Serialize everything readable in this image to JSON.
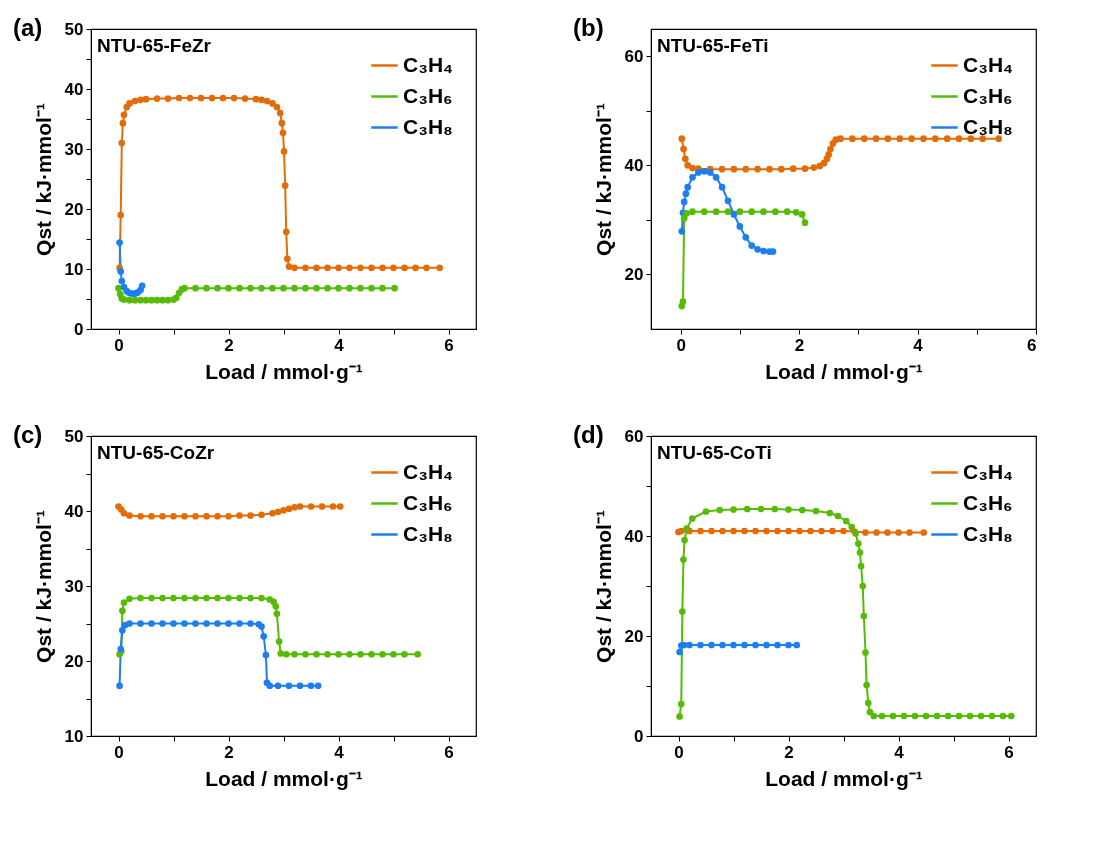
{
  "chart_data": [
    {
      "type": "line",
      "title": "NTU-65-FeZr",
      "annotations": [
        "(a)"
      ],
      "xlabel": "Load / mmol·g⁻¹",
      "ylabel": "Qst / kJ·mmol⁻¹",
      "xlim": [
        -0.5,
        6.5
      ],
      "ylim": [
        0,
        50
      ],
      "xticks": [
        0,
        {
          "value": 1,
          "label": null
        },
        2,
        {
          "value": 3,
          "label": null
        },
        4,
        {
          "value": 5,
          "label": null
        },
        6
      ],
      "yticks": [
        0,
        {
          "value": 5,
          "label": null
        },
        10,
        {
          "value": 15,
          "label": null
        },
        20,
        {
          "value": 25,
          "label": null
        },
        30,
        {
          "value": 35,
          "label": null
        },
        40,
        {
          "value": 45,
          "label": null
        },
        50
      ],
      "grid": false,
      "legend": "top right",
      "marker": "circle",
      "line_style": "solid",
      "series": [
        {
          "name": "C₃H₄",
          "color": "#e36c09",
          "x": [
            0.02,
            0.04,
            0.06,
            0.08,
            0.1,
            0.15,
            0.2,
            0.3,
            0.4,
            0.5,
            0.7,
            0.9,
            1.1,
            1.3,
            1.5,
            1.7,
            1.9,
            2.1,
            2.3,
            2.5,
            2.6,
            2.7,
            2.8,
            2.88,
            2.94,
            2.97,
            2.99,
            3.01,
            3.03,
            3.05,
            3.07,
            3.1,
            3.2,
            3.4,
            3.6,
            3.8,
            4.0,
            4.2,
            4.4,
            4.6,
            4.8,
            5.0,
            5.2,
            5.4,
            5.6,
            5.84
          ],
          "values": [
            10.2,
            19.0,
            31.0,
            34.3,
            35.7,
            37.0,
            37.6,
            38.0,
            38.2,
            38.3,
            38.4,
            38.4,
            38.5,
            38.5,
            38.5,
            38.5,
            38.5,
            38.5,
            38.4,
            38.3,
            38.2,
            38.0,
            37.6,
            37.0,
            36.0,
            34.3,
            32.7,
            29.6,
            23.9,
            16.2,
            11.7,
            10.4,
            10.2,
            10.2,
            10.2,
            10.2,
            10.2,
            10.2,
            10.2,
            10.2,
            10.2,
            10.2,
            10.2,
            10.2,
            10.2,
            10.2
          ]
        },
        {
          "name": "C₃H₆",
          "color": "#56bb06",
          "x": [
            0.0,
            0.03,
            0.06,
            0.1,
            0.2,
            0.3,
            0.4,
            0.5,
            0.6,
            0.7,
            0.8,
            0.9,
            1.0,
            1.05,
            1.1,
            1.15,
            1.2,
            1.4,
            1.6,
            1.8,
            2.0,
            2.2,
            2.4,
            2.6,
            2.8,
            3.0,
            3.2,
            3.4,
            3.6,
            3.8,
            4.0,
            4.2,
            4.4,
            4.6,
            4.8,
            5.02
          ],
          "values": [
            6.8,
            5.8,
            5.1,
            4.9,
            4.8,
            4.8,
            4.8,
            4.8,
            4.8,
            4.8,
            4.8,
            4.8,
            4.9,
            5.2,
            6.0,
            6.6,
            6.8,
            6.8,
            6.8,
            6.8,
            6.8,
            6.8,
            6.8,
            6.8,
            6.8,
            6.8,
            6.8,
            6.8,
            6.8,
            6.8,
            6.8,
            6.8,
            6.8,
            6.8,
            6.8,
            6.8
          ]
        },
        {
          "name": "C₃H₈",
          "color": "#1c7ef0",
          "x": [
            0.02,
            0.04,
            0.06,
            0.1,
            0.15,
            0.2,
            0.25,
            0.3,
            0.35,
            0.4,
            0.43
          ],
          "values": [
            14.4,
            9.6,
            8.0,
            7.0,
            6.3,
            6.0,
            5.9,
            5.9,
            6.1,
            6.5,
            7.2
          ]
        }
      ]
    },
    {
      "type": "line",
      "title": "NTU-65-FeTi",
      "annotations": [
        "(b)"
      ],
      "xlabel": "Load / mmol·g⁻¹",
      "ylabel": "Qst / kJ·mmol⁻¹",
      "xlim": [
        -0.5,
        6
      ],
      "ylim": [
        10,
        65
      ],
      "xticks": [
        0,
        {
          "value": 1,
          "label": null
        },
        2,
        {
          "value": 3,
          "label": null
        },
        4,
        {
          "value": 5,
          "label": null
        },
        6
      ],
      "yticks": [
        20,
        {
          "value": 30,
          "label": null
        },
        40,
        {
          "value": 50,
          "label": null
        },
        60
      ],
      "grid": false,
      "legend": "top right",
      "marker": "circle",
      "line_style": "solid",
      "series": [
        {
          "name": "C₃H₄",
          "color": "#e36c09",
          "x": [
            0.02,
            0.05,
            0.08,
            0.12,
            0.2,
            0.3,
            0.5,
            0.7,
            0.9,
            1.1,
            1.3,
            1.5,
            1.7,
            1.9,
            2.1,
            2.25,
            2.35,
            2.42,
            2.47,
            2.5,
            2.53,
            2.57,
            2.62,
            2.7,
            2.9,
            3.1,
            3.3,
            3.5,
            3.7,
            3.9,
            4.1,
            4.3,
            4.5,
            4.7,
            4.9,
            5.1,
            5.37
          ],
          "values": [
            44.9,
            43.0,
            41.2,
            40.0,
            39.5,
            39.4,
            39.3,
            39.3,
            39.3,
            39.3,
            39.3,
            39.3,
            39.3,
            39.4,
            39.4,
            39.6,
            39.9,
            40.4,
            41.2,
            42.0,
            43.0,
            44.0,
            44.7,
            44.9,
            44.9,
            44.9,
            44.9,
            44.9,
            44.9,
            44.9,
            44.9,
            44.9,
            44.9,
            44.9,
            44.9,
            44.9,
            44.9
          ]
        },
        {
          "name": "C₃H₆",
          "color": "#56bb06",
          "x": [
            0.02,
            0.04,
            0.06,
            0.1,
            0.2,
            0.4,
            0.6,
            0.8,
            1.0,
            1.2,
            1.4,
            1.6,
            1.8,
            1.95,
            2.05,
            2.1
          ],
          "values": [
            14.2,
            15.0,
            30.3,
            31.2,
            31.5,
            31.5,
            31.5,
            31.5,
            31.5,
            31.5,
            31.5,
            31.5,
            31.5,
            31.4,
            31.0,
            29.5
          ]
        },
        {
          "name": "C₃H₈",
          "color": "#1c7ef0",
          "x": [
            0.02,
            0.04,
            0.06,
            0.09,
            0.12,
            0.2,
            0.3,
            0.4,
            0.5,
            0.6,
            0.7,
            0.8,
            0.9,
            1.0,
            1.1,
            1.2,
            1.3,
            1.4,
            1.5,
            1.56
          ],
          "values": [
            27.9,
            31.3,
            33.3,
            34.8,
            36.0,
            37.8,
            38.7,
            38.9,
            38.7,
            37.8,
            36.0,
            33.5,
            31.0,
            28.8,
            26.8,
            25.3,
            24.6,
            24.3,
            24.2,
            24.2
          ]
        }
      ]
    },
    {
      "type": "line",
      "title": "NTU-65-CoZr",
      "annotations": [
        "(c)"
      ],
      "xlabel": "Load / mmol·g⁻¹",
      "ylabel": "Qst / kJ·mmol⁻¹",
      "xlim": [
        -0.5,
        6.5
      ],
      "ylim": [
        10,
        50
      ],
      "xticks": [
        0,
        {
          "value": 1,
          "label": null
        },
        2,
        {
          "value": 3,
          "label": null
        },
        4,
        {
          "value": 5,
          "label": null
        },
        6
      ],
      "yticks": [
        10,
        {
          "value": 15,
          "label": null
        },
        20,
        {
          "value": 25,
          "label": null
        },
        30,
        {
          "value": 35,
          "label": null
        },
        40,
        {
          "value": 45,
          "label": null
        },
        50
      ],
      "grid": false,
      "legend": "top right",
      "marker": "circle",
      "line_style": "solid",
      "series": [
        {
          "name": "C₃H₄",
          "color": "#e36c09",
          "x": [
            0.0,
            0.05,
            0.1,
            0.2,
            0.4,
            0.6,
            0.8,
            1.0,
            1.2,
            1.4,
            1.6,
            1.8,
            2.0,
            2.2,
            2.4,
            2.6,
            2.8,
            2.9,
            3.0,
            3.1,
            3.2,
            3.3,
            3.5,
            3.7,
            3.9,
            4.03
          ],
          "values": [
            40.6,
            40.2,
            39.7,
            39.4,
            39.3,
            39.3,
            39.3,
            39.3,
            39.3,
            39.3,
            39.3,
            39.3,
            39.3,
            39.4,
            39.4,
            39.5,
            39.7,
            39.9,
            40.1,
            40.3,
            40.5,
            40.6,
            40.6,
            40.6,
            40.6,
            40.6
          ]
        },
        {
          "name": "C₃H₆",
          "color": "#56bb06",
          "x": [
            0.02,
            0.05,
            0.07,
            0.1,
            0.2,
            0.4,
            0.6,
            0.8,
            1.0,
            1.2,
            1.4,
            1.6,
            1.8,
            2.0,
            2.2,
            2.4,
            2.6,
            2.75,
            2.82,
            2.86,
            2.88,
            2.92,
            2.95,
            3.05,
            3.2,
            3.4,
            3.6,
            3.8,
            4.0,
            4.2,
            4.4,
            4.6,
            4.8,
            5.0,
            5.2,
            5.44
          ],
          "values": [
            20.9,
            21.3,
            26.7,
            27.8,
            28.3,
            28.4,
            28.4,
            28.4,
            28.4,
            28.4,
            28.4,
            28.4,
            28.4,
            28.4,
            28.4,
            28.4,
            28.4,
            28.2,
            27.9,
            27.3,
            26.3,
            22.6,
            21.0,
            20.9,
            20.9,
            20.9,
            20.9,
            20.9,
            20.9,
            20.9,
            20.9,
            20.9,
            20.9,
            20.9,
            20.9,
            20.9
          ]
        },
        {
          "name": "C₃H₈",
          "color": "#1c7ef0",
          "x": [
            0.02,
            0.04,
            0.07,
            0.12,
            0.2,
            0.4,
            0.6,
            0.8,
            1.0,
            1.2,
            1.4,
            1.6,
            1.8,
            2.0,
            2.2,
            2.4,
            2.55,
            2.6,
            2.64,
            2.68,
            2.7,
            2.75,
            2.9,
            3.1,
            3.3,
            3.5,
            3.63
          ],
          "values": [
            16.7,
            21.6,
            24.1,
            24.8,
            25.0,
            25.0,
            25.0,
            25.0,
            25.0,
            25.0,
            25.0,
            25.0,
            25.0,
            25.0,
            25.0,
            25.0,
            24.9,
            24.6,
            23.3,
            20.8,
            17.1,
            16.7,
            16.7,
            16.7,
            16.7,
            16.7,
            16.7
          ]
        }
      ]
    },
    {
      "type": "line",
      "title": "NTU-65-CoTi",
      "annotations": [
        "(d)"
      ],
      "xlabel": "Load / mmol·g⁻¹",
      "ylabel": "Qst / kJ·mmol⁻¹",
      "xlim": [
        -0.5,
        6.5
      ],
      "ylim": [
        0,
        60
      ],
      "xticks": [
        0,
        {
          "value": 1,
          "label": null
        },
        2,
        {
          "value": 3,
          "label": null
        },
        4,
        {
          "value": 5,
          "label": null
        },
        6
      ],
      "yticks": [
        0,
        {
          "value": 10,
          "label": null
        },
        20,
        {
          "value": 30,
          "label": null
        },
        40,
        {
          "value": 50,
          "label": null
        },
        60
      ],
      "grid": false,
      "legend": "top right",
      "marker": "circle",
      "line_style": "solid",
      "series": [
        {
          "name": "C₃H₄",
          "color": "#e36c09",
          "x": [
            0.0,
            0.05,
            0.2,
            0.4,
            0.6,
            0.8,
            1.0,
            1.2,
            1.4,
            1.6,
            1.8,
            2.0,
            2.2,
            2.4,
            2.6,
            2.8,
            3.0,
            3.2,
            3.4,
            3.6,
            3.8,
            4.0,
            4.2,
            4.46
          ],
          "values": [
            40.8,
            41.0,
            41.0,
            41.0,
            41.0,
            41.0,
            41.0,
            41.0,
            41.0,
            41.0,
            41.0,
            41.0,
            41.0,
            41.0,
            41.0,
            41.0,
            41.0,
            40.9,
            40.7,
            40.7,
            40.7,
            40.7,
            40.7,
            40.7
          ]
        },
        {
          "name": "C₃H₆",
          "color": "#56bb06",
          "x": [
            0.02,
            0.05,
            0.07,
            0.09,
            0.11,
            0.15,
            0.25,
            0.5,
            0.75,
            1.0,
            1.25,
            1.5,
            1.75,
            2.0,
            2.25,
            2.5,
            2.75,
            2.9,
            3.05,
            3.15,
            3.22,
            3.27,
            3.3,
            3.32,
            3.35,
            3.37,
            3.4,
            3.42,
            3.45,
            3.48,
            3.55,
            3.7,
            3.9,
            4.1,
            4.3,
            4.5,
            4.7,
            4.9,
            5.1,
            5.3,
            5.5,
            5.7,
            5.9,
            6.05
          ],
          "values": [
            3.9,
            6.4,
            24.9,
            35.3,
            39.2,
            41.5,
            43.5,
            44.9,
            45.2,
            45.3,
            45.4,
            45.4,
            45.4,
            45.3,
            45.2,
            45.0,
            44.6,
            44.0,
            43.0,
            41.8,
            40.5,
            38.5,
            36.7,
            34.0,
            30.0,
            24.0,
            16.7,
            10.2,
            6.6,
            4.8,
            4.0,
            4.0,
            4.0,
            4.0,
            4.0,
            4.0,
            4.0,
            4.0,
            4.0,
            4.0,
            4.0,
            4.0,
            4.0,
            4.0
          ]
        },
        {
          "name": "C₃H₈",
          "color": "#1c7ef0",
          "x": [
            0.02,
            0.05,
            0.1,
            0.2,
            0.4,
            0.6,
            0.8,
            1.0,
            1.2,
            1.4,
            1.6,
            1.8,
            2.0,
            2.15
          ],
          "values": [
            16.8,
            18.1,
            18.2,
            18.2,
            18.2,
            18.2,
            18.2,
            18.2,
            18.2,
            18.2,
            18.2,
            18.2,
            18.2,
            18.2
          ]
        }
      ]
    }
  ]
}
